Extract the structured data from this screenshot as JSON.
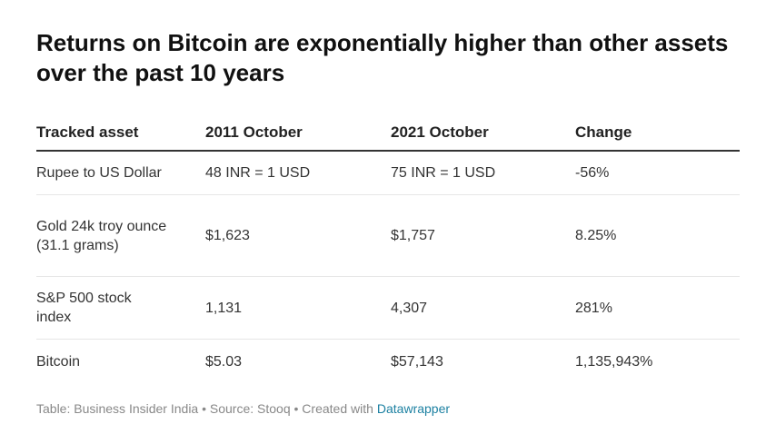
{
  "header": {
    "title": "Returns on Bitcoin are exponentially higher than other assets over the past 10 years"
  },
  "table": {
    "columns": [
      "Tracked asset",
      "2011 October",
      "2021 October",
      "Change"
    ],
    "rows": [
      [
        "Rupee to US Dollar",
        "48 INR = 1 USD",
        "75 INR = 1 USD",
        "-56%"
      ],
      [
        "Gold 24k troy ounce (31.1 grams)",
        "$1,623",
        "$1,757",
        "8.25%"
      ],
      [
        "S&P 500 stock index",
        "1,131",
        "4,307",
        "281%"
      ],
      [
        "Bitcoin",
        "$5.03",
        "$57,143",
        "1,135,943%"
      ]
    ]
  },
  "footer": {
    "text": "Table: Business Insider India • Source: Stooq • Created with",
    "link": "Datawrapper"
  }
}
